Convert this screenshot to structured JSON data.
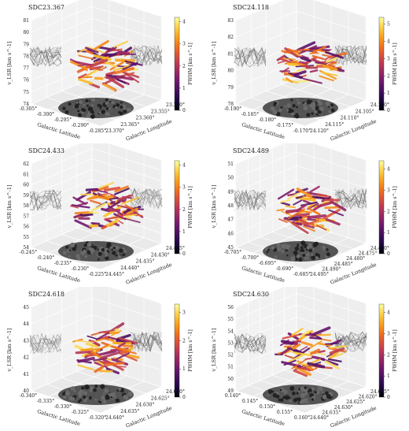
{
  "figure": {
    "panel_order": [
      "SDC23.367",
      "SDC24.118",
      "SDC24.433",
      "SDC24.489",
      "SDC24.618",
      "SDC24.630"
    ]
  },
  "chart_data": [
    {
      "type": "scatter3d",
      "title": "SDC23.367",
      "xlabel": "Galactic Latitude",
      "ylabel": "Galactic Longitude",
      "zlabel": "v_LSR [km s^-1]",
      "x_ticks": [
        "-0.305°",
        "-0.300°",
        "-0.295°",
        "-0.290°",
        "-0.285°"
      ],
      "y_ticks": [
        "23.370°",
        "23.365°",
        "23.360°",
        "23.355°",
        "23.350°"
      ],
      "z_ticks": [
        "74",
        "75",
        "76",
        "77",
        "78",
        "79",
        "80",
        "81"
      ],
      "zlim": [
        74,
        81
      ],
      "colorbar": {
        "label": "FWHM [km s^-1]",
        "ticks": [
          "0",
          "1",
          "2",
          "3",
          "4"
        ],
        "range": [
          0,
          4.2
        ],
        "cmap": "inferno"
      },
      "grid": true
    },
    {
      "type": "scatter3d",
      "title": "SDC24.118",
      "xlabel": "Galactic Latitude",
      "ylabel": "Galactic Longitude",
      "zlabel": "v_LSR [km s^-1]",
      "x_ticks": [
        "-0.190°",
        "-0.185°",
        "-0.180°",
        "-0.175°",
        "-0.170°"
      ],
      "y_ticks": [
        "24.120°",
        "24.115°",
        "24.110°",
        "24.105°",
        "24.100°"
      ],
      "z_ticks": [
        "78",
        "79",
        "80",
        "81",
        "82",
        "83"
      ],
      "zlim": [
        78,
        83
      ],
      "colorbar": {
        "label": "FWHM [km s^-1]",
        "ticks": [
          "0",
          "1",
          "2",
          "3",
          "4",
          "5"
        ],
        "range": [
          0,
          5.4
        ],
        "cmap": "inferno"
      },
      "grid": true
    },
    {
      "type": "scatter3d",
      "title": "SDC24.433",
      "xlabel": "Galactic Latitude",
      "ylabel": "Galactic Longitude",
      "zlabel": "v_LSR [km s^-1]",
      "x_ticks": [
        "-0.245°",
        "-0.240°",
        "-0.235°",
        "-0.230°",
        "-0.225°"
      ],
      "y_ticks": [
        "24.445°",
        "24.440°",
        "24.435°",
        "24.430°",
        "24.425°"
      ],
      "z_ticks": [
        "54",
        "55",
        "56",
        "57",
        "58",
        "59",
        "60",
        "61",
        "62"
      ],
      "zlim": [
        54,
        62
      ],
      "colorbar": {
        "label": "FWHM [km s^-1]",
        "ticks": [
          "0",
          "1",
          "2",
          "3",
          "4"
        ],
        "range": [
          0,
          4.2
        ],
        "cmap": "inferno"
      },
      "grid": true
    },
    {
      "type": "scatter3d",
      "title": "SDC24.489",
      "xlabel": "Galactic Latitude",
      "ylabel": "Galactic Longitude",
      "zlabel": "v_LSR [km s^-1]",
      "x_ticks": [
        "-0.705°",
        "-0.700°",
        "-0.695°",
        "-0.690°",
        "-0.685°"
      ],
      "y_ticks": [
        "24.495°",
        "24.490°",
        "24.485°",
        "24.480°",
        "24.475°",
        "24.470°"
      ],
      "z_ticks": [
        "45",
        "46",
        "47",
        "48",
        "49",
        "50",
        "51"
      ],
      "zlim": [
        45,
        51
      ],
      "colorbar": {
        "label": "FWHM [km s^-1]",
        "ticks": [
          "0",
          "1",
          "2",
          "3",
          "4"
        ],
        "range": [
          0,
          4.4
        ],
        "cmap": "inferno"
      },
      "grid": true
    },
    {
      "type": "scatter3d",
      "title": "SDC24.618",
      "xlabel": "Galactic Latitude",
      "ylabel": "Galactic Longitude",
      "zlabel": "v_LSR [km s^-1]",
      "x_ticks": [
        "-0.340°",
        "-0.335°",
        "-0.330°",
        "-0.325°",
        "-0.320°"
      ],
      "y_ticks": [
        "24.640°",
        "24.635°",
        "24.630°",
        "24.625°",
        "24.620°"
      ],
      "z_ticks": [
        "40",
        "41",
        "42",
        "43",
        "44",
        "45"
      ],
      "zlim": [
        40,
        45
      ],
      "colorbar": {
        "label": "FWHM [km s^-1]",
        "ticks": [
          "0",
          "1",
          "2",
          "3"
        ],
        "range": [
          0,
          3.3
        ],
        "cmap": "inferno"
      },
      "grid": true
    },
    {
      "type": "scatter3d",
      "title": "SDC24.630",
      "xlabel": "Galactic Latitude",
      "ylabel": "Galactic Longitude",
      "zlabel": "v_LSR [km s^-1]",
      "x_ticks": [
        "0.140°",
        "0.145°",
        "0.150°",
        "0.155°",
        "0.160°"
      ],
      "y_ticks": [
        "24.640°",
        "24.635°",
        "24.630°",
        "24.625°",
        "24.620°",
        "24.615°"
      ],
      "z_ticks": [
        "49",
        "50",
        "51",
        "52",
        "53",
        "54",
        "55",
        "56"
      ],
      "zlim": [
        49,
        56
      ],
      "colorbar": {
        "label": "FWHM [km s^-1]",
        "ticks": [
          "0",
          "1",
          "2",
          "3",
          "4"
        ],
        "range": [
          0,
          4.4
        ],
        "cmap": "inferno"
      },
      "grid": true
    }
  ]
}
